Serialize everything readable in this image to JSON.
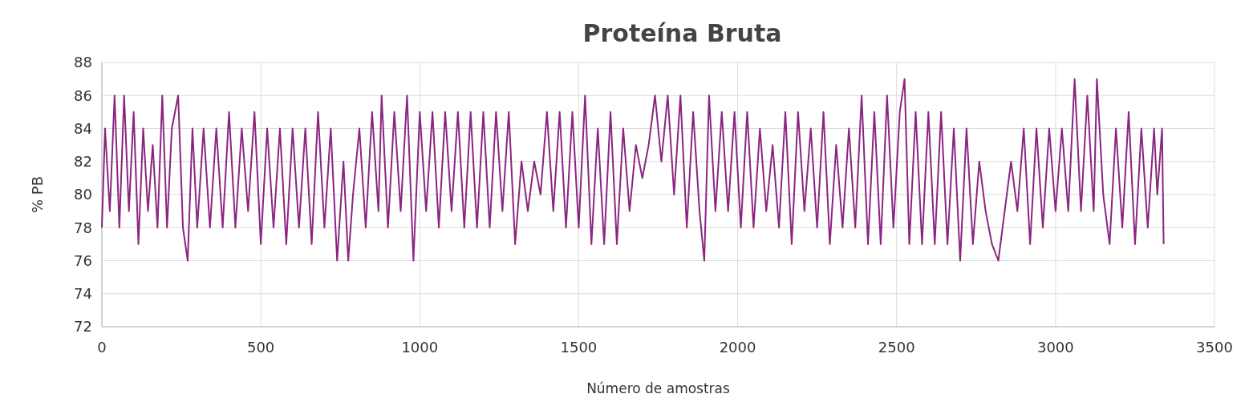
{
  "chart_data": {
    "type": "line",
    "title": "Proteína Bruta",
    "xlabel": "Número de amostras",
    "ylabel": "% PB",
    "xlim": [
      0,
      3500
    ],
    "xticks": [
      0,
      500,
      1000,
      1500,
      2000,
      2500,
      3000,
      3500
    ],
    "ylim": [
      72,
      88
    ],
    "yticks": [
      72,
      74,
      76,
      78,
      80,
      82,
      84,
      86,
      88
    ],
    "grid": true,
    "series": [
      {
        "color": "#8b2581",
        "x": [
          0,
          10,
          25,
          40,
          55,
          70,
          85,
          100,
          115,
          130,
          145,
          160,
          175,
          190,
          205,
          220,
          240,
          255,
          270,
          285,
          300,
          320,
          340,
          360,
          380,
          400,
          420,
          440,
          460,
          480,
          500,
          520,
          540,
          560,
          580,
          600,
          620,
          640,
          660,
          680,
          700,
          720,
          740,
          760,
          775,
          790,
          810,
          830,
          850,
          870,
          880,
          900,
          920,
          940,
          960,
          980,
          1000,
          1020,
          1040,
          1060,
          1080,
          1100,
          1120,
          1140,
          1160,
          1180,
          1200,
          1220,
          1240,
          1260,
          1280,
          1300,
          1320,
          1340,
          1360,
          1380,
          1400,
          1420,
          1440,
          1460,
          1480,
          1500,
          1520,
          1540,
          1560,
          1580,
          1600,
          1620,
          1640,
          1660,
          1680,
          1700,
          1720,
          1740,
          1760,
          1780,
          1800,
          1820,
          1840,
          1860,
          1880,
          1895,
          1910,
          1930,
          1950,
          1970,
          1990,
          2010,
          2030,
          2050,
          2070,
          2090,
          2110,
          2130,
          2150,
          2170,
          2190,
          2210,
          2230,
          2250,
          2270,
          2290,
          2310,
          2330,
          2350,
          2370,
          2390,
          2410,
          2430,
          2450,
          2470,
          2490,
          2510,
          2525,
          2540,
          2560,
          2580,
          2600,
          2620,
          2640,
          2660,
          2680,
          2700,
          2720,
          2740,
          2760,
          2780,
          2800,
          2820,
          2840,
          2860,
          2880,
          2900,
          2920,
          2940,
          2960,
          2980,
          3000,
          3020,
          3040,
          3060,
          3080,
          3100,
          3120,
          3130,
          3150,
          3170,
          3190,
          3210,
          3230,
          3250,
          3270,
          3290,
          3310,
          3320,
          3335,
          3340
        ],
        "values": [
          78,
          84,
          79,
          86,
          78,
          86,
          79,
          85,
          77,
          84,
          79,
          83,
          78,
          86,
          78,
          84,
          86,
          78,
          76,
          84,
          78,
          84,
          78,
          84,
          78,
          85,
          78,
          84,
          79,
          85,
          77,
          84,
          78,
          84,
          77,
          84,
          78,
          84,
          77,
          85,
          78,
          84,
          76,
          82,
          76,
          80,
          84,
          78,
          85,
          79,
          86,
          78,
          85,
          79,
          86,
          76,
          85,
          79,
          85,
          78,
          85,
          79,
          85,
          78,
          85,
          78,
          85,
          78,
          85,
          79,
          85,
          77,
          82,
          79,
          82,
          80,
          85,
          79,
          85,
          78,
          85,
          78,
          86,
          77,
          84,
          77,
          85,
          77,
          84,
          79,
          83,
          81,
          83,
          86,
          82,
          86,
          80,
          86,
          78,
          85,
          79,
          76,
          86,
          79,
          85,
          79,
          85,
          78,
          85,
          78,
          84,
          79,
          83,
          78,
          85,
          77,
          85,
          79,
          84,
          78,
          85,
          77,
          83,
          78,
          84,
          78,
          86,
          77,
          85,
          77,
          86,
          78,
          85,
          87,
          77,
          85,
          77,
          85,
          77,
          85,
          77,
          84,
          76,
          84,
          77,
          82,
          79,
          77,
          76,
          79,
          82,
          79,
          84,
          77,
          84,
          78,
          84,
          79,
          84,
          79,
          87,
          79,
          86,
          79,
          87,
          80,
          77,
          84,
          78,
          85,
          77,
          84,
          78,
          84,
          80,
          84,
          77
        ]
      }
    ]
  }
}
